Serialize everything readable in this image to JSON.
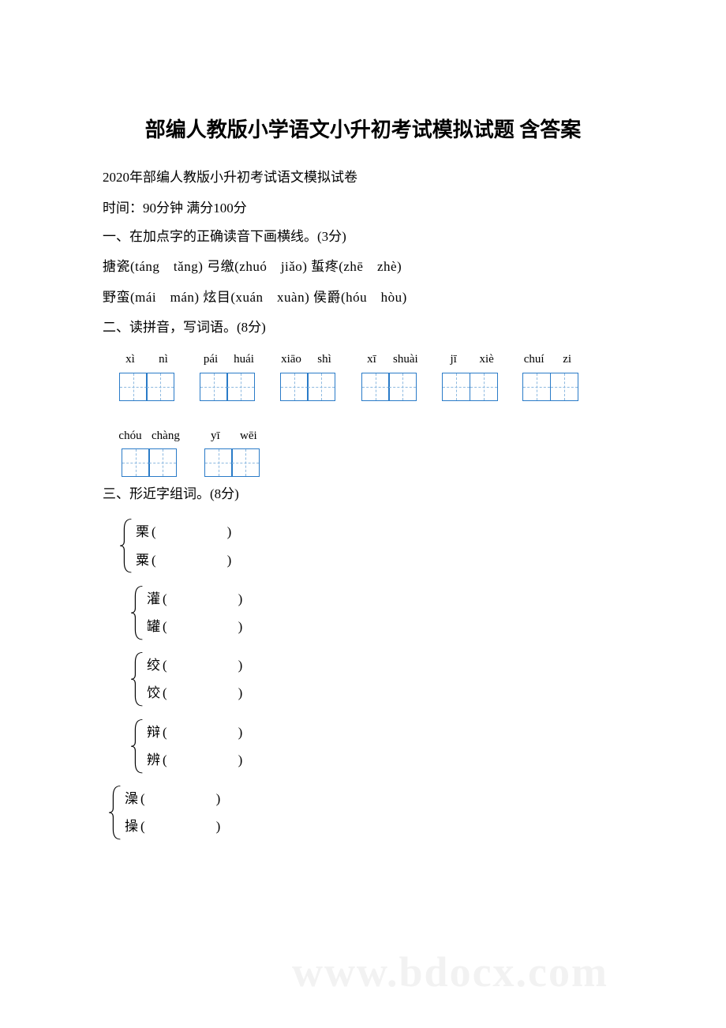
{
  "title": "部编人教版小学语文小升初考试模拟试题 含答案",
  "subtitle": "2020年部编人教版小升初考试语文模拟试卷",
  "time_info": "时间：90分钟 满分100分",
  "watermark": "www.bdocx.com",
  "colors": {
    "box_border": "#2a7bc8",
    "box_dash": "#8db9e0",
    "text": "#000000",
    "background": "#ffffff",
    "watermark": "#e8e8e8"
  },
  "section1": {
    "header": "一、在加点字的正确读音下画横线。(3分)",
    "line1": "搪瓷(táng　tǎng)  弓缴(zhuó　jiǎo)  蜇疼(zhē　zhè)",
    "line2": "野蛮(mái　mán)  炫目(xuán　xuàn)  侯爵(hóu　hòu)"
  },
  "section2": {
    "header": "二、读拼音，写词语。(8分)",
    "items": [
      {
        "p1": "xì",
        "p2": "nì"
      },
      {
        "p1": "pái",
        "p2": "huái"
      },
      {
        "p1": "xiāo",
        "p2": "shì"
      },
      {
        "p1": "xī",
        "p2": "shuài"
      },
      {
        "p1": "jī",
        "p2": "xiè"
      },
      {
        "p1": "chuí",
        "p2": "zi"
      },
      {
        "p1": "chóu",
        "p2": "chàng"
      },
      {
        "p1": "yī",
        "p2": "wēi"
      }
    ]
  },
  "section3": {
    "header": "三、形近字组词。(8分)",
    "groups": [
      {
        "indent": "normal",
        "a": "栗",
        "b": "粟"
      },
      {
        "indent": "in",
        "a": "灌",
        "b": "罐"
      },
      {
        "indent": "in",
        "a": "绞",
        "b": "饺"
      },
      {
        "indent": "in",
        "a": "辩",
        "b": "辨"
      },
      {
        "indent": "out",
        "a": "澡",
        "b": "操"
      }
    ]
  }
}
